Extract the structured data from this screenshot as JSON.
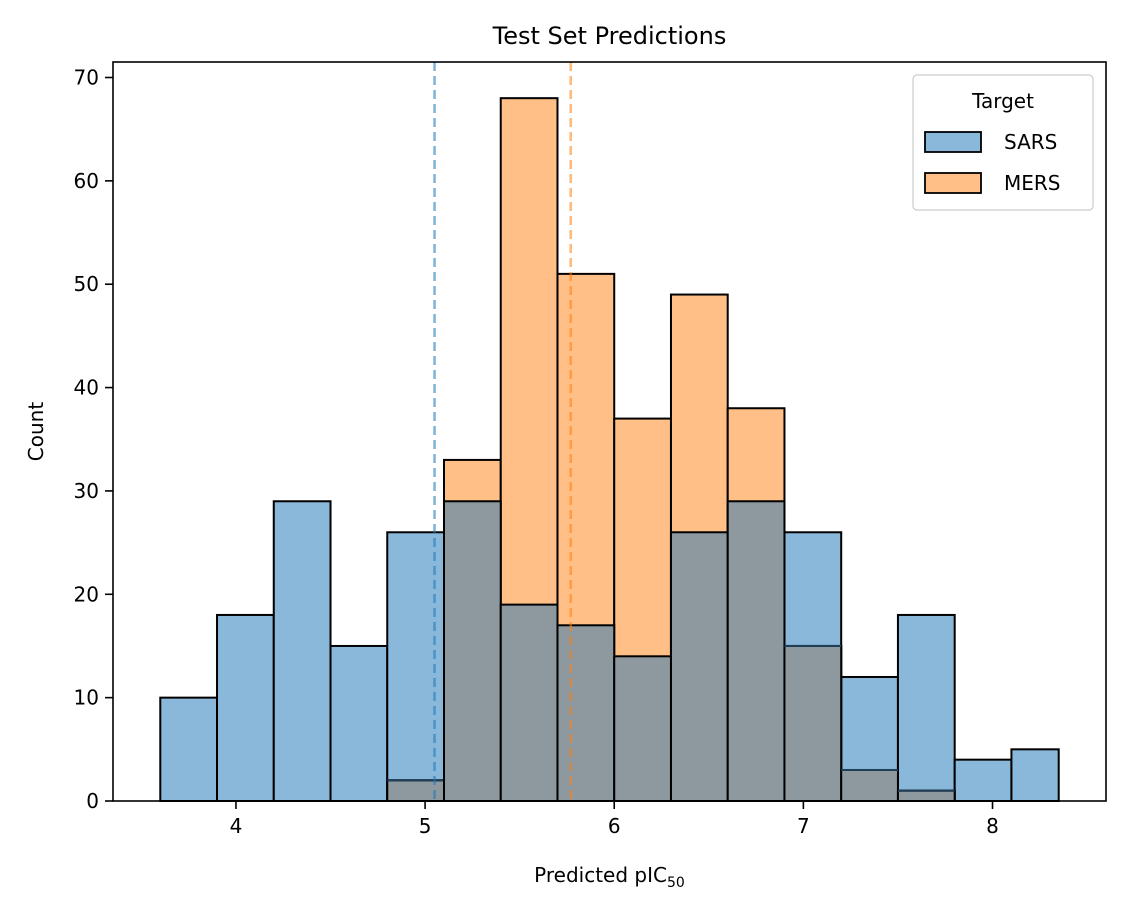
{
  "chart_data": {
    "type": "histogram",
    "title": "Test Set Predictions",
    "xlabel_main": "Predicted pIC",
    "xlabel_sub": "50",
    "ylabel": "Count",
    "xlim": [
      3.35,
      8.6
    ],
    "ylim": [
      0,
      71.5
    ],
    "xticks": [
      4,
      5,
      6,
      7,
      8
    ],
    "yticks": [
      0,
      10,
      20,
      30,
      40,
      50,
      60,
      70
    ],
    "bin_edges": [
      3.6,
      3.9,
      4.2,
      4.5,
      4.8,
      5.1,
      5.4,
      5.7,
      6.0,
      6.3,
      6.6,
      6.9,
      7.2,
      7.5,
      7.8,
      8.1,
      8.35
    ],
    "series": [
      {
        "name": "SARS",
        "color": "#1f77b4",
        "fill": "#8ab8da",
        "values": [
          10,
          18,
          29,
          15,
          26,
          29,
          19,
          17,
          14,
          26,
          29,
          26,
          12,
          18,
          4,
          5
        ],
        "mean_line": 5.05
      },
      {
        "name": "MERS",
        "color": "#ff7f0e",
        "fill": "#ffbf86",
        "values": [
          0,
          0,
          0,
          0,
          2,
          33,
          68,
          51,
          37,
          49,
          38,
          15,
          3,
          1,
          0,
          0
        ],
        "mean_line": 5.77
      }
    ],
    "overlap_fill": "#8e999f",
    "legend": {
      "title": "Target",
      "position": "upper right"
    },
    "grid": false
  }
}
